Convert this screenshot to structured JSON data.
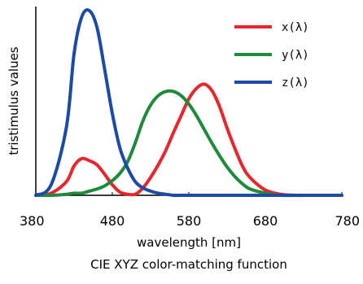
{
  "chart_data": {
    "type": "line",
    "title": "CIE XYZ color-matching function",
    "xlabel": "wavelength [nm]",
    "ylabel": "tristimulus values",
    "xlim": [
      380,
      780
    ],
    "ylim": [
      0,
      1.8
    ],
    "x_ticks": [
      380,
      480,
      580,
      680,
      780
    ],
    "x_tick_labels": [
      "380",
      "480",
      "580",
      "680",
      "780"
    ],
    "grid": false,
    "legend_position": "top-right",
    "x": [
      380,
      400,
      420,
      430,
      440,
      450,
      460,
      470,
      480,
      490,
      500,
      510,
      520,
      530,
      540,
      550,
      560,
      570,
      580,
      590,
      600,
      610,
      620,
      630,
      640,
      650,
      660,
      680,
      700,
      720,
      740,
      780
    ],
    "series": [
      {
        "name": "x(λ)",
        "color": "#e8262b",
        "values": [
          0.0,
          0.02,
          0.13,
          0.28,
          0.35,
          0.33,
          0.29,
          0.2,
          0.1,
          0.03,
          0.01,
          0.01,
          0.07,
          0.17,
          0.29,
          0.43,
          0.6,
          0.76,
          0.92,
          1.02,
          1.06,
          1.0,
          0.85,
          0.64,
          0.45,
          0.28,
          0.17,
          0.05,
          0.01,
          0.0,
          0.0,
          0.0
        ]
      },
      {
        "name": "y(λ)",
        "color": "#1e8b3c",
        "values": [
          0.0,
          0.0,
          0.01,
          0.02,
          0.02,
          0.04,
          0.06,
          0.09,
          0.14,
          0.21,
          0.32,
          0.5,
          0.71,
          0.86,
          0.95,
          0.99,
          0.99,
          0.95,
          0.87,
          0.76,
          0.63,
          0.5,
          0.38,
          0.27,
          0.18,
          0.11,
          0.06,
          0.02,
          0.0,
          0.0,
          0.0,
          0.0
        ]
      },
      {
        "name": "z(λ)",
        "color": "#1b4ba6",
        "values": [
          0.0,
          0.1,
          0.65,
          1.35,
          1.7,
          1.76,
          1.6,
          1.2,
          0.78,
          0.45,
          0.26,
          0.13,
          0.07,
          0.04,
          0.02,
          0.01,
          0.0,
          0.0,
          0.0,
          0.0,
          0.0,
          0.0,
          0.0,
          0.0,
          0.0,
          0.0,
          0.0,
          0.0,
          0.0,
          0.0,
          0.0,
          0.0
        ]
      }
    ]
  }
}
